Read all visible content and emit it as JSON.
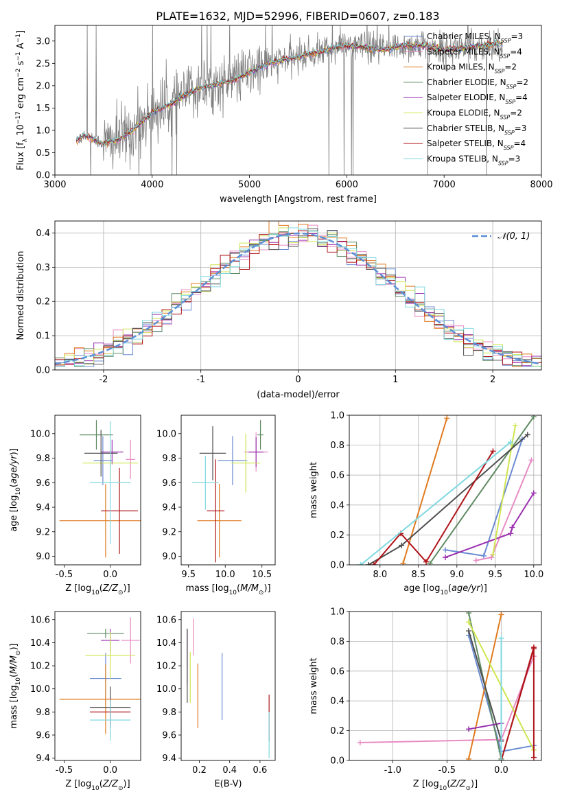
{
  "title": "PLATE=1632, MJD=52996, FIBERID=0607, z=0.183",
  "models": [
    {
      "name": "Chabrier MILES, N",
      "sub": "SSP",
      "suffix": "=3",
      "color": "#6b8bd1"
    },
    {
      "name": "Salpeter MILES, N",
      "sub": "SSP",
      "suffix": "=4",
      "color": "#e88bc4"
    },
    {
      "name": "Kroupa MILES, N",
      "sub": "SSP",
      "suffix": "=2",
      "color": "#e07a1f"
    },
    {
      "name": "Chabrier ELODIE, N",
      "sub": "SSP",
      "suffix": "=2",
      "color": "#5e8a62"
    },
    {
      "name": "Salpeter ELODIE, N",
      "sub": "SSP",
      "suffix": "=4",
      "color": "#9a30b0"
    },
    {
      "name": "Kroupa ELODIE, N",
      "sub": "SSP",
      "suffix": "=2",
      "color": "#cfe650"
    },
    {
      "name": "Chabrier STELIB, N",
      "sub": "SSP",
      "suffix": "=3",
      "color": "#4d4d4d"
    },
    {
      "name": "Salpeter STELIB, N",
      "sub": "SSP",
      "suffix": "=4",
      "color": "#b0141a"
    },
    {
      "name": "Kroupa STELIB, N",
      "sub": "SSP",
      "suffix": "=3",
      "color": "#7fd8e0"
    }
  ],
  "chart_data": [
    {
      "type": "line",
      "id": "spectrum",
      "xlabel": "wavelength [Angstrom, rest frame]",
      "ylabel": "Flux [f_λ 10^-17 erg cm^-2 s^-1 A^-1]",
      "xlim": [
        3000,
        8000
      ],
      "ylim": [
        0,
        3.35
      ],
      "xticks": [
        3000,
        4000,
        5000,
        6000,
        7000,
        8000
      ],
      "yticks": [
        0.0,
        0.5,
        1.0,
        1.5,
        2.0,
        2.5,
        3.0
      ],
      "grid": false,
      "data_color": "#808080",
      "data_anchor_x": [
        3220,
        3300,
        3400,
        3500,
        3600,
        3700,
        3800,
        3900,
        4000,
        4100,
        4200,
        4300,
        4400,
        4500,
        4600,
        4700,
        4800,
        4900,
        5000,
        5200,
        5400,
        5600,
        5800,
        6000,
        6200,
        6400,
        6600,
        6800,
        7000,
        7200,
        7400,
        7600
      ],
      "data_anchor_y": [
        0.75,
        0.9,
        0.8,
        0.7,
        0.75,
        0.85,
        1.0,
        1.2,
        1.4,
        1.5,
        1.6,
        1.75,
        1.85,
        1.95,
        2.0,
        2.05,
        2.1,
        2.2,
        2.3,
        2.5,
        2.6,
        2.7,
        2.8,
        2.9,
        2.85,
        2.8,
        2.9,
        2.9,
        2.8,
        2.85,
        2.9,
        2.95
      ],
      "legend_loc": "upper right"
    },
    {
      "type": "line",
      "id": "residuals",
      "xlabel": "(data-model)/error",
      "ylabel": "Normed distribution",
      "xlim": [
        -2.5,
        2.5
      ],
      "ylim": [
        0,
        0.435
      ],
      "xticks": [
        -2,
        -1,
        0,
        1,
        2
      ],
      "yticks": [
        0.0,
        0.1,
        0.2,
        0.3,
        0.4
      ],
      "grid": true,
      "gaussian_label": "𝒩(0, 1)",
      "gaussian_color": "#5b8fd6",
      "legend_loc": "upper right"
    },
    {
      "type": "scatter",
      "id": "age_vs_Z",
      "xlabel": "Z [log10(Z/Z⊙)]",
      "ylabel": "age  [log10(age/yr)]",
      "xlim": [
        -0.6,
        0.33
      ],
      "ylim": [
        8.93,
        10.15
      ],
      "xticks": [
        -0.5,
        0.0
      ],
      "yticks": [
        9.0,
        9.2,
        9.4,
        9.6,
        9.8,
        10.0
      ],
      "points": [
        {
          "x": -0.08,
          "y": 9.78,
          "xerr": 0.1,
          "yerr": 0.2,
          "model": 0
        },
        {
          "x": 0.22,
          "y": 9.79,
          "xerr": 0.05,
          "yerr": 0.16,
          "model": 1
        },
        {
          "x": -0.05,
          "y": 9.29,
          "xerr": 0.5,
          "yerr": 0.3,
          "model": 2
        },
        {
          "x": -0.15,
          "y": 9.99,
          "xerr": 0.18,
          "yerr": 0.12,
          "model": 3
        },
        {
          "x": 0.02,
          "y": 9.85,
          "xerr": 0.12,
          "yerr": 0.1,
          "model": 4
        },
        {
          "x": 0.0,
          "y": 9.76,
          "xerr": 0.3,
          "yerr": 0.12,
          "model": 5
        },
        {
          "x": -0.1,
          "y": 9.84,
          "xerr": 0.18,
          "yerr": 0.19,
          "model": 6
        },
        {
          "x": 0.1,
          "y": 9.37,
          "xerr": 0.2,
          "yerr": 0.35,
          "model": 7
        },
        {
          "x": 0.0,
          "y": 9.6,
          "xerr": 0.22,
          "yerr": 0.5,
          "model": 8
        }
      ]
    },
    {
      "type": "scatter",
      "id": "age_vs_mass",
      "xlabel": "mass [log10(M/M⊙)]",
      "ylabel": "",
      "xlim": [
        9.4,
        10.68
      ],
      "ylim": [
        8.93,
        10.15
      ],
      "xticks": [
        9.5,
        10.0,
        10.5
      ],
      "yticks": [
        9.0,
        9.2,
        9.4,
        9.6,
        9.8,
        10.0
      ],
      "points": [
        {
          "x": 10.1,
          "y": 9.78,
          "xerr": 0.2,
          "yerr": 0.2,
          "model": 0
        },
        {
          "x": 10.42,
          "y": 9.85,
          "xerr": 0.16,
          "yerr": 0.16,
          "model": 1
        },
        {
          "x": 9.92,
          "y": 9.29,
          "xerr": 0.3,
          "yerr": 0.3,
          "model": 2
        },
        {
          "x": 10.48,
          "y": 9.99,
          "xerr": 0.04,
          "yerr": 0.12,
          "model": 3
        },
        {
          "x": 10.42,
          "y": 9.85,
          "xerr": 0.1,
          "yerr": 0.12,
          "model": 4
        },
        {
          "x": 10.28,
          "y": 9.76,
          "xerr": 0.2,
          "yerr": 0.24,
          "model": 5
        },
        {
          "x": 9.83,
          "y": 9.84,
          "xerr": 0.18,
          "yerr": 0.22,
          "model": 6
        },
        {
          "x": 9.87,
          "y": 9.37,
          "xerr": 0.12,
          "yerr": 0.42,
          "model": 7
        },
        {
          "x": 9.73,
          "y": 9.6,
          "xerr": 0.18,
          "yerr": 0.22,
          "model": 8
        }
      ]
    },
    {
      "type": "line",
      "id": "mass_weight_vs_age",
      "xlabel": "age  [log10(age/yr)]",
      "ylabel": "mass weight",
      "xlim": [
        7.6,
        10.1
      ],
      "ylim": [
        0.0,
        1.0
      ],
      "xticks": [
        8.0,
        8.5,
        9.0,
        9.5,
        10.0
      ],
      "yticks": [
        0.0,
        0.2,
        0.4,
        0.6,
        0.8,
        1.0
      ],
      "grid": true,
      "series": [
        {
          "model": 0,
          "x": [
            8.85,
            9.35,
            9.85
          ],
          "y": [
            0.1,
            0.06,
            0.84
          ]
        },
        {
          "model": 1,
          "x": [
            9.25,
            9.45,
            9.97
          ],
          "y": [
            0.03,
            0.05,
            0.7
          ]
        },
        {
          "model": 2,
          "x": [
            8.3,
            8.87
          ],
          "y": [
            0.01,
            0.98
          ]
        },
        {
          "model": 3,
          "x": [
            8.65,
            10.0
          ],
          "y": [
            0.01,
            0.99
          ]
        },
        {
          "model": 4,
          "x": [
            8.85,
            9.7,
            9.72,
            10.0
          ],
          "y": [
            0.05,
            0.21,
            0.25,
            0.48
          ]
        },
        {
          "model": 5,
          "x": [
            9.47,
            9.76
          ],
          "y": [
            0.07,
            0.93
          ]
        },
        {
          "model": 6,
          "x": [
            7.85,
            8.28,
            9.92
          ],
          "y": [
            0.0,
            0.13,
            0.87
          ]
        },
        {
          "model": 7,
          "x": [
            7.92,
            8.27,
            8.6,
            9.47
          ],
          "y": [
            0.0,
            0.21,
            0.02,
            0.76
          ]
        },
        {
          "model": 8,
          "x": [
            7.75,
            9.7
          ],
          "y": [
            0.0,
            0.82
          ]
        }
      ]
    },
    {
      "type": "scatter",
      "id": "mass_vs_Z",
      "xlabel": "Z [log10(Z/Z⊙)]",
      "ylabel": "mass [log10(M/M⊙)]",
      "xlim": [
        -0.6,
        0.33
      ],
      "ylim": [
        9.38,
        10.67
      ],
      "xticks": [
        -0.5,
        0.0
      ],
      "yticks": [
        9.4,
        9.6,
        9.8,
        10.0,
        10.2,
        10.4,
        10.6
      ],
      "points": [
        {
          "x": -0.05,
          "y": 10.09,
          "xerr": 0.17,
          "yerr": 0.22,
          "model": 0
        },
        {
          "x": 0.22,
          "y": 10.42,
          "xerr": 0.1,
          "yerr": 0.2,
          "model": 1
        },
        {
          "x": -0.05,
          "y": 9.91,
          "xerr": 0.5,
          "yerr": 0.3,
          "model": 2
        },
        {
          "x": -0.05,
          "y": 10.48,
          "xerr": 0.2,
          "yerr": 0.04,
          "model": 3
        },
        {
          "x": 0.0,
          "y": 10.42,
          "xerr": 0.1,
          "yerr": 0.1,
          "model": 4
        },
        {
          "x": 0.0,
          "y": 10.29,
          "xerr": 0.27,
          "yerr": 0.2,
          "model": 5
        },
        {
          "x": 0.0,
          "y": 9.84,
          "xerr": 0.22,
          "yerr": 0.18,
          "model": 6
        },
        {
          "x": 0.0,
          "y": 9.8,
          "xerr": 0.22,
          "yerr": 0.12,
          "model": 7
        },
        {
          "x": 0.0,
          "y": 9.73,
          "xerr": 0.22,
          "yerr": 0.18,
          "model": 8
        }
      ]
    },
    {
      "type": "scatter",
      "id": "mass_vs_ebv",
      "xlabel": "E(B-V)",
      "ylabel": "",
      "xlim": [
        0.08,
        0.7
      ],
      "ylim": [
        9.38,
        10.67
      ],
      "xticks": [
        0.2,
        0.4,
        0.6
      ],
      "yticks": [
        9.4,
        9.6,
        9.8,
        10.0,
        10.2,
        10.4,
        10.6
      ],
      "points": [
        {
          "x": 0.35,
          "y": 10.02,
          "yerr": 0.29,
          "model": 0
        },
        {
          "x": 0.16,
          "y": 10.45,
          "yerr": 0.16,
          "model": 1
        },
        {
          "x": 0.19,
          "y": 9.94,
          "yerr": 0.28,
          "model": 2
        },
        {
          "x": 0.12,
          "y": 10.35,
          "yerr": 0.17,
          "model": 3
        },
        {
          "x": 0.12,
          "y": 10.28,
          "yerr": 0.24,
          "model": 4
        },
        {
          "x": 0.14,
          "y": 10.1,
          "yerr": 0.22,
          "model": 5
        },
        {
          "x": 0.12,
          "y": 10.2,
          "yerr": 0.32,
          "model": 6
        },
        {
          "x": 0.66,
          "y": 9.75,
          "yerr": 0.2,
          "model": 7
        },
        {
          "x": 0.66,
          "y": 9.6,
          "yerr": 0.2,
          "model": 8
        }
      ]
    },
    {
      "type": "line",
      "id": "mass_weight_vs_Z",
      "xlabel": "Z [log10(Z/Z⊙)]",
      "ylabel": "mass weight",
      "xlim": [
        -1.4,
        0.37
      ],
      "ylim": [
        0.0,
        1.0
      ],
      "xticks": [
        -1.0,
        -0.5,
        0.0
      ],
      "yticks": [
        0.0,
        0.2,
        0.4,
        0.6,
        0.8,
        1.0
      ],
      "grid": true,
      "series": [
        {
          "model": 0,
          "x": [
            -0.3,
            0.0,
            0.3
          ],
          "y": [
            0.84,
            0.06,
            0.1
          ]
        },
        {
          "model": 1,
          "x": [
            -1.3,
            0.0,
            0.3
          ],
          "y": [
            0.12,
            0.14,
            0.7
          ]
        },
        {
          "model": 2,
          "x": [
            -0.3,
            0.0
          ],
          "y": [
            0.01,
            0.98
          ]
        },
        {
          "model": 3,
          "x": [
            -0.3,
            0.0
          ],
          "y": [
            0.99,
            0.01
          ]
        },
        {
          "model": 4,
          "x": [
            -0.3,
            0.0
          ],
          "y": [
            0.21,
            0.25
          ]
        },
        {
          "model": 5,
          "x": [
            -0.3,
            0.3
          ],
          "y": [
            0.93,
            0.07
          ]
        },
        {
          "model": 6,
          "x": [
            -0.3,
            0.0
          ],
          "y": [
            0.87,
            0.13
          ]
        },
        {
          "model": 7,
          "x": [
            0.3,
            0.3,
            0.0,
            0.3
          ],
          "y": [
            0.02,
            0.76,
            0.0,
            0.75
          ]
        },
        {
          "model": 8,
          "x": [
            0.0,
            0.0
          ],
          "y": [
            0.0,
            0.82
          ]
        }
      ]
    }
  ]
}
